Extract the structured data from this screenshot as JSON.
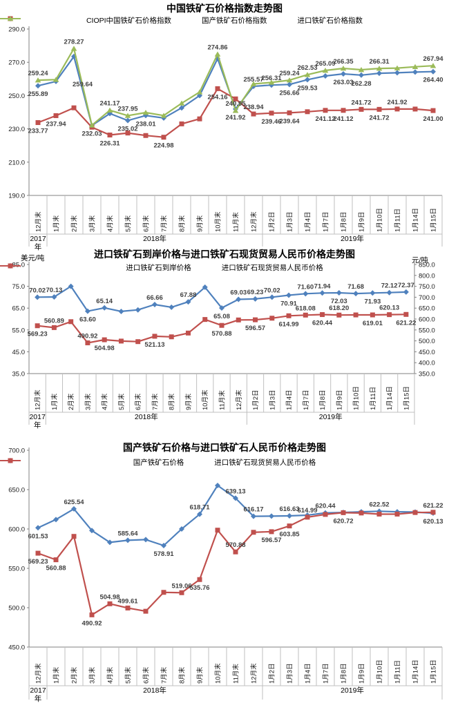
{
  "accent_colors": {
    "blue": "#4F81BD",
    "red": "#C0504D",
    "green": "#9BBB59"
  },
  "chart_data": [
    {
      "type": "line",
      "title": "中国铁矿石价格指数走势图",
      "y_axis": {
        "min": 190,
        "max": 290,
        "ticks": [
          "290.0",
          "270.0",
          "250.0",
          "230.0",
          "210.0",
          "190.0"
        ],
        "title": ""
      },
      "x_axis": {
        "categories": [
          "12月末",
          "1月末",
          "2月末",
          "3月末",
          "4月末",
          "5月末",
          "6月末",
          "7月末",
          "8月末",
          "9月末",
          "10月末",
          "11月末",
          "12月末",
          "1月2日",
          "1月3日",
          "1月4日",
          "1月7日",
          "1月8日",
          "1月9日",
          "1月10日",
          "1月11日",
          "1月14日",
          "1月15日"
        ],
        "years": [
          {
            "label": "2017年",
            "from": 0,
            "to": 1
          },
          {
            "label": "2018年",
            "from": 1,
            "to": 13
          },
          {
            "label": "2019年",
            "from": 13,
            "to": 23
          }
        ]
      },
      "series": [
        {
          "name": "CIOPI中国铁矿石价格指数",
          "color": "#4F81BD",
          "marker": "diamond",
          "axis": "left",
          "values": [
            255.89,
            258.5,
            273.5,
            232.03,
            239.2,
            235.02,
            238.01,
            236.5,
            242.6,
            250.0,
            272.2,
            241.92,
            255.57,
            256.31,
            256.66,
            259.53,
            261.8,
            263.03,
            262.28,
            263.4,
            263.7,
            264.1,
            264.4
          ],
          "labels": [
            "255.89",
            null,
            null,
            "232.03",
            null,
            "235.02",
            "238.01",
            null,
            null,
            null,
            null,
            "241.92",
            "255.57",
            "256.31",
            "256.66",
            "259.53",
            null,
            "263.03",
            "262.28",
            null,
            null,
            null,
            "264.40"
          ],
          "lpos": [
            "b",
            null,
            null,
            "b",
            null,
            "b",
            "b",
            null,
            null,
            null,
            null,
            "b",
            "a",
            "a",
            "b",
            "b",
            null,
            "b",
            "b",
            null,
            null,
            null,
            "b"
          ]
        },
        {
          "name": "国产铁矿石价格指数",
          "color": "#C0504D",
          "marker": "square",
          "axis": "left",
          "values": [
            233.77,
            237.94,
            242.64,
            231.0,
            226.31,
            227.5,
            226.0,
            224.98,
            233.0,
            236.0,
            254.16,
            248.0,
            238.94,
            239.46,
            239.64,
            240.3,
            241.12,
            241.12,
            241.72,
            241.72,
            241.92,
            241.9,
            241.0
          ],
          "labels": [
            "233.77",
            "237.94",
            null,
            null,
            "226.31",
            null,
            null,
            "224.98",
            null,
            null,
            "254.16",
            null,
            "238.94",
            "239.46",
            "239.64",
            null,
            "241.12",
            "241.12",
            "241.72",
            "241.72",
            "241.92",
            null,
            "241.00"
          ],
          "lpos": [
            "b",
            "b",
            null,
            null,
            "b",
            null,
            null,
            "b",
            null,
            null,
            "b",
            null,
            "a",
            "b",
            "b",
            null,
            "b",
            "b",
            "a",
            "b",
            "a",
            null,
            "b"
          ]
        },
        {
          "name": "进口铁矿石价格指数",
          "color": "#9BBB59",
          "marker": "triangle",
          "axis": "left",
          "values": [
            259.24,
            259.6,
            278.27,
            232.2,
            241.17,
            237.95,
            239.8,
            238.0,
            245.4,
            252.1,
            274.86,
            240.95,
            257.0,
            257.9,
            259.24,
            262.53,
            265.09,
            266.35,
            265.5,
            266.31,
            266.5,
            267.3,
            267.94
          ],
          "labels": [
            "259.24",
            null,
            "278.27",
            null,
            "241.17",
            "237.95",
            null,
            null,
            null,
            null,
            "274.86",
            "240.95",
            null,
            null,
            "259.24",
            "262.53",
            "265.09",
            "266.35",
            null,
            "266.31",
            null,
            null,
            "267.94"
          ],
          "lpos": [
            "a",
            null,
            "a",
            null,
            "a",
            "a",
            null,
            null,
            null,
            null,
            "a",
            "a",
            null,
            null,
            "a",
            "a",
            "a",
            "a",
            null,
            "a",
            null,
            null,
            "a"
          ]
        }
      ],
      "annotations": [
        {
          "text": "259.64",
          "index": 2,
          "value": 255.5,
          "dx": -2
        }
      ]
    },
    {
      "type": "line",
      "title": "进口铁矿石到岸价格与进口铁矿石现货贸易人民币价格走势图",
      "y_axis": {
        "min": 35,
        "max": 85,
        "ticks": [
          "85.0",
          "75.0",
          "65.0",
          "55.0",
          "45.0",
          "35.0"
        ],
        "title": "美元/吨"
      },
      "y2_axis": {
        "min": 350,
        "max": 850,
        "ticks": [
          "850.0",
          "800.0",
          "750.0",
          "700.0",
          "650.0",
          "600.0",
          "550.0",
          "500.0",
          "450.0",
          "400.0",
          "350.0"
        ],
        "title": "元/吨"
      },
      "x_axis": {
        "categories": [
          "12月末",
          "1月末",
          "2月末",
          "3月末",
          "4月末",
          "5月末",
          "6月末",
          "7月末",
          "8月末",
          "9月末",
          "10月末",
          "11月末",
          "12月末",
          "1月2日",
          "1月3日",
          "1月4日",
          "1月7日",
          "1月8日",
          "1月9日",
          "1月10日",
          "1月11日",
          "1月14日",
          "1月15日"
        ],
        "years": [
          {
            "label": "2017年",
            "from": 0,
            "to": 1
          },
          {
            "label": "2018年",
            "from": 1,
            "to": 13
          },
          {
            "label": "2019年",
            "from": 13,
            "to": 23
          }
        ]
      },
      "series": [
        {
          "name": "进口铁矿石到岸价格",
          "color": "#4F81BD",
          "marker": "diamond",
          "axis": "left",
          "values": [
            70.02,
            70.13,
            75.0,
            63.6,
            65.14,
            63.5,
            64.2,
            66.66,
            65.4,
            67.88,
            74.6,
            65.08,
            69.03,
            69.23,
            70.02,
            70.91,
            71.6,
            71.94,
            72.03,
            71.68,
            71.93,
            72.12,
            72.37
          ],
          "labels": [
            "70.02",
            "70.13",
            null,
            "63.60",
            "65.14",
            null,
            null,
            "66.66",
            null,
            "67.88",
            null,
            "65.08",
            "69.03",
            "69.23",
            "70.02",
            "70.91",
            "71.60",
            "71.94",
            "72.03",
            "71.68",
            "71.93",
            "72.12",
            "72.37"
          ],
          "lpos": [
            "a",
            "a",
            null,
            "b",
            "a",
            null,
            null,
            "a",
            null,
            "a",
            null,
            "b",
            "a",
            "a",
            "a",
            "b",
            "a",
            "a",
            "b",
            "a",
            "b",
            "a",
            "a"
          ]
        },
        {
          "name": "进口铁矿石现货贸易人民币价格",
          "color": "#C0504D",
          "marker": "square",
          "axis": "right",
          "values": [
            569.23,
            560.89,
            588.0,
            490.92,
            504.98,
            499.0,
            496.5,
            521.13,
            518.5,
            535.8,
            598.0,
            570.88,
            595.8,
            596.57,
            603.9,
            614.99,
            618.08,
            620.44,
            618.2,
            618.9,
            619.01,
            620.13,
            621.22
          ],
          "labels": [
            "569.23",
            "560.89",
            null,
            "490.92",
            "504.98",
            null,
            null,
            "521.13",
            null,
            null,
            null,
            "570.88",
            null,
            "596.57",
            null,
            "614.99",
            "618.08",
            "620.44",
            "618.20",
            null,
            "619.01",
            "620.13",
            "621.22"
          ],
          "lpos": [
            "b",
            "a",
            null,
            "a",
            "b",
            null,
            null,
            "b",
            null,
            null,
            null,
            "b",
            null,
            "b",
            null,
            "b",
            "a",
            "b",
            "a",
            null,
            "b",
            "a",
            "b"
          ]
        }
      ],
      "annotations": []
    },
    {
      "type": "line",
      "title": "国产铁矿石价格与进口铁矿石人民币价格走势图",
      "y_axis": {
        "min": 450,
        "max": 700,
        "ticks": [
          "700.0",
          "650.0",
          "600.0",
          "550.0",
          "500.0",
          "450.0"
        ],
        "title": ""
      },
      "x_axis": {
        "categories": [
          "12月末",
          "1月末",
          "2月末",
          "3月末",
          "4月末",
          "5月末",
          "6月末",
          "7月末",
          "8月末",
          "9月末",
          "10月末",
          "11月末",
          "12月末",
          "1月2日",
          "1月3日",
          "1月4日",
          "1月7日",
          "1月8日",
          "1月9日",
          "1月10日",
          "1月11日",
          "1月14日",
          "1月15日"
        ],
        "years": [
          {
            "label": "2017年",
            "from": 0,
            "to": 1
          },
          {
            "label": "2018年",
            "from": 1,
            "to": 13
          },
          {
            "label": "2019年",
            "from": 13,
            "to": 23
          }
        ]
      },
      "series": [
        {
          "name": "国产铁矿石价格",
          "color": "#4F81BD",
          "marker": "diamond",
          "axis": "left",
          "values": [
            601.53,
            612.0,
            625.54,
            598.0,
            583.0,
            585.64,
            586.5,
            578.91,
            600.0,
            618.71,
            655.3,
            639.13,
            616.17,
            616.3,
            616.63,
            617.5,
            620.44,
            621.0,
            621.8,
            622.52,
            621.8,
            621.5,
            620.13
          ],
          "labels": [
            "601.53",
            null,
            "625.54",
            null,
            null,
            "585.64",
            null,
            "578.91",
            null,
            "618.71",
            null,
            "639.13",
            "616.17",
            null,
            "616.63",
            null,
            "620.44",
            null,
            null,
            "622.52",
            null,
            null,
            "620.13"
          ],
          "lpos": [
            "b",
            null,
            "a",
            null,
            null,
            "a",
            null,
            "b",
            null,
            "a",
            null,
            "a",
            "a",
            null,
            "a",
            null,
            "a",
            null,
            null,
            "a",
            null,
            null,
            "b"
          ]
        },
        {
          "name": "进口铁矿石现货贸易人民币价格",
          "color": "#C0504D",
          "marker": "square",
          "axis": "left",
          "values": [
            569.23,
            560.88,
            590.6,
            490.92,
            504.98,
            499.61,
            495.5,
            519.5,
            519.06,
            535.76,
            598.5,
            570.88,
            595.8,
            596.57,
            603.85,
            614.99,
            618.5,
            620.72,
            620.3,
            618.9,
            618.9,
            620.9,
            621.22
          ],
          "labels": [
            "569.23",
            "560.88",
            null,
            "490.92",
            "504.98",
            "499.61",
            null,
            null,
            "519.06",
            "535.76",
            null,
            "570.88",
            null,
            "596.57",
            "603.85",
            "614.99",
            null,
            "620.72",
            null,
            null,
            null,
            null,
            "621.22"
          ],
          "lpos": [
            "b",
            "b",
            null,
            "b",
            "a",
            "a",
            null,
            null,
            "a",
            "b",
            null,
            "a",
            null,
            "b",
            "b",
            "a",
            null,
            "b",
            null,
            null,
            null,
            null,
            "a"
          ]
        }
      ],
      "annotations": []
    }
  ]
}
